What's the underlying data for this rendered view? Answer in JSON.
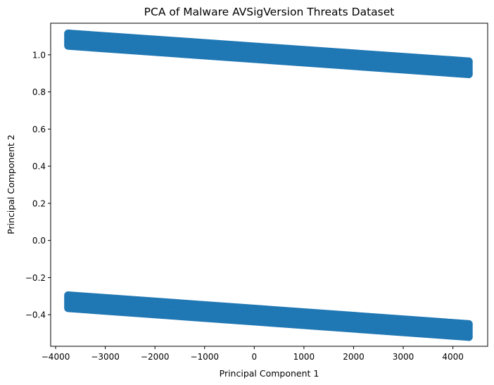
{
  "chart_data": {
    "type": "scatter",
    "title": "PCA of Malware AVSigVersion Threats Dataset",
    "xlabel": "Principal Component 1",
    "ylabel": "Principal Component 2",
    "xlim": [
      -4100,
      4700
    ],
    "ylim": [
      -0.57,
      1.17
    ],
    "grid": false,
    "marker_color": "#1f77b4",
    "xticks": [
      {
        "value": -4000,
        "label": "−4000"
      },
      {
        "value": -3000,
        "label": "−3000"
      },
      {
        "value": -2000,
        "label": "−2000"
      },
      {
        "value": -1000,
        "label": "−1000"
      },
      {
        "value": 0,
        "label": "0"
      },
      {
        "value": 1000,
        "label": "1000"
      },
      {
        "value": 2000,
        "label": "2000"
      },
      {
        "value": 3000,
        "label": "3000"
      },
      {
        "value": 4000,
        "label": "4000"
      }
    ],
    "yticks": [
      {
        "value": -0.4,
        "label": "−0.4"
      },
      {
        "value": -0.2,
        "label": "−0.2"
      },
      {
        "value": 0.0,
        "label": "0.0"
      },
      {
        "value": 0.2,
        "label": "0.2"
      },
      {
        "value": 0.4,
        "label": "0.4"
      },
      {
        "value": 0.6,
        "label": "0.6"
      },
      {
        "value": 0.8,
        "label": "0.8"
      },
      {
        "value": 1.0,
        "label": "1.0"
      }
    ],
    "clusters": [
      {
        "x_range": [
          -3750,
          4320
        ],
        "y_top_left": 1.115,
        "y_bottom_left": 1.048,
        "y_top_right": 0.965,
        "y_bottom_right": 0.895
      },
      {
        "x_range": [
          -3750,
          4320
        ],
        "y_top_left": -0.295,
        "y_bottom_left": -0.365,
        "y_top_right": -0.45,
        "y_bottom_right": -0.52
      }
    ],
    "points": [
      {
        "x": -3730,
        "y": 1.115
      },
      {
        "x": -3730,
        "y": 1.05
      },
      {
        "x": -3600,
        "y": 1.1
      },
      {
        "x": -3550,
        "y": 1.085
      },
      {
        "x": -3300,
        "y": 1.07
      },
      {
        "x": -3150,
        "y": 1.075
      },
      {
        "x": -2950,
        "y": 1.07
      },
      {
        "x": -2800,
        "y": 1.07
      },
      {
        "x": -2600,
        "y": 1.075
      },
      {
        "x": -2300,
        "y": 1.06
      },
      {
        "x": -2000,
        "y": 1.05
      },
      {
        "x": -1800,
        "y": 1.06
      },
      {
        "x": 4320,
        "y": 0.965
      },
      {
        "x": 4320,
        "y": 0.895
      },
      {
        "x": -3730,
        "y": -0.297
      },
      {
        "x": -3730,
        "y": -0.365
      },
      {
        "x": -3600,
        "y": -0.31
      },
      {
        "x": -3350,
        "y": -0.33
      },
      {
        "x": -3100,
        "y": -0.34
      },
      {
        "x": -2600,
        "y": -0.355
      },
      {
        "x": -2200,
        "y": -0.355
      },
      {
        "x": -1900,
        "y": -0.37
      },
      {
        "x": 4320,
        "y": -0.45
      },
      {
        "x": 4320,
        "y": -0.52
      }
    ]
  }
}
